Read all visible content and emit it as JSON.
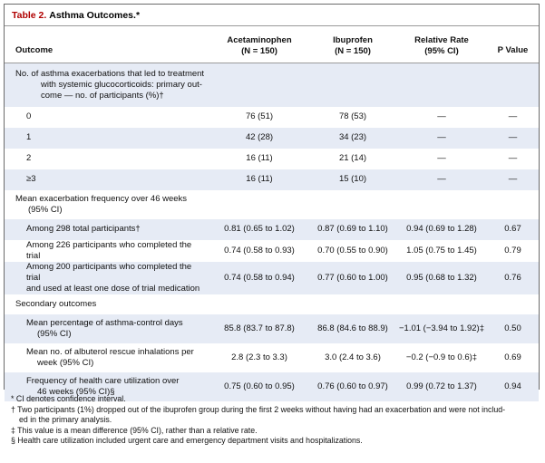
{
  "table": {
    "label": "Table 2.",
    "title": "Asthma Outcomes.*",
    "headers": {
      "outcome": "Outcome",
      "acet_line1": "Acetaminophen",
      "acet_line2": "(N = 150)",
      "ibu_line1": "Ibuprofen",
      "ibu_line2": "(N = 150)",
      "rr_line1": "Relative Rate",
      "rr_line2": "(95% CI)",
      "p": "P Value"
    },
    "exacerbation_section": {
      "line1": "No. of asthma exacerbations that led to treatment",
      "line2": "with systemic glucocorticoids: primary out-",
      "line3": "come — no. of participants (%)†"
    },
    "exacerbation_rows": [
      {
        "label": "0",
        "acet": "76 (51)",
        "ibu": "78 (53)",
        "rr": "—",
        "p": "—"
      },
      {
        "label": "1",
        "acet": "42 (28)",
        "ibu": "34 (23)",
        "rr": "—",
        "p": "—"
      },
      {
        "label": "2",
        "acet": "16 (11)",
        "ibu": "21 (14)",
        "rr": "—",
        "p": "—"
      },
      {
        "label": "≥3",
        "acet": "16 (11)",
        "ibu": "15 (10)",
        "rr": "—",
        "p": "—"
      }
    ],
    "frequency_section": {
      "line1": "Mean exacerbation frequency over 46 weeks",
      "line2": "(95% CI)"
    },
    "frequency_rows": [
      {
        "line1": "Among 298 total participants†",
        "line2": "",
        "acet": "0.81 (0.65 to 1.02)",
        "ibu": "0.87 (0.69 to 1.10)",
        "rr": "0.94 (0.69 to 1.28)",
        "p": "0.67"
      },
      {
        "line1": "Among 226 participants who completed the trial",
        "line2": "",
        "acet": "0.74 (0.58 to 0.93)",
        "ibu": "0.70 (0.55 to 0.90)",
        "rr": "1.05 (0.75 to 1.45)",
        "p": "0.79"
      },
      {
        "line1": "Among 200 participants who completed the trial",
        "line2": "and used at least one dose of trial medication",
        "acet": "0.74 (0.58 to 0.94)",
        "ibu": "0.77 (0.60 to 1.00)",
        "rr": "0.95 (0.68 to 1.32)",
        "p": "0.76"
      }
    ],
    "secondary_section": "Secondary outcomes",
    "secondary_rows": [
      {
        "line1": "Mean percentage of asthma-control days",
        "line2": "(95% CI)",
        "acet": "85.8 (83.7 to 87.8)",
        "ibu": "86.8 (84.6 to 88.9)",
        "rr": "−1.01 (−3.94 to 1.92)‡",
        "p": "0.50"
      },
      {
        "line1": "Mean no. of albuterol rescue inhalations per",
        "line2": "week (95% CI)",
        "acet": "2.8 (2.3 to 3.3)",
        "ibu": "3.0 (2.4 to 3.6)",
        "rr": "−0.2 (−0.9 to 0.6)‡",
        "p": "0.69"
      },
      {
        "line1": "Frequency of health care utilization over",
        "line2": "46 weeks (95% CI)§",
        "acet": "0.75 (0.60 to 0.95)",
        "ibu": "0.76 (0.60 to 0.97)",
        "rr": "0.99 (0.72 to 1.37)",
        "p": "0.94"
      }
    ]
  },
  "footnotes": {
    "f1": "* CI denotes confidence interval.",
    "f2a": "† Two participants (1%) dropped out of the ibuprofen group during the first 2 weeks without having had an exacerbation and were not includ-",
    "f2b": "ed in the primary analysis.",
    "f3": "‡ This value is a mean difference (95% CI), rather than a relative rate.",
    "f4": "§ Health care utilization included urgent care and emergency department visits and hospitalizations."
  },
  "colors": {
    "shade": "#e6ebf5",
    "title_label": "#b00000",
    "border": "#6b6b6b"
  }
}
